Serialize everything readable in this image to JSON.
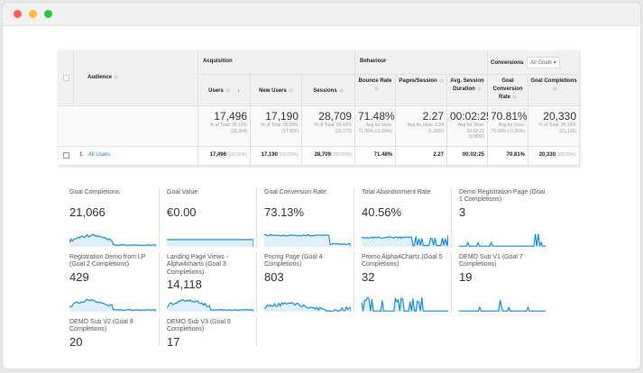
{
  "colors": {
    "accent": "#1a8fd4",
    "link": "#1a73c8"
  },
  "table": {
    "audience_label": "Audience",
    "groups": {
      "acquisition": "Acquisition",
      "behaviour": "Behaviour",
      "conversions": "Conversions"
    },
    "goal_select": "All Goals",
    "columns": [
      {
        "label": "Users",
        "total": "17,496",
        "sub": "% of Total: 96.11% (18,204)",
        "row": "17,496",
        "row_pct": "(100.00%)"
      },
      {
        "label": "New Users",
        "total": "17,190",
        "sub": "% of Total: 95.89% (17,926)",
        "row": "17,190",
        "row_pct": "(100.00%)"
      },
      {
        "label": "Sessions",
        "total": "28,709",
        "sub": "% of Total: 96.43% (29,772)",
        "row": "28,709",
        "row_pct": "(100.00%)"
      },
      {
        "label": "Bounce Rate",
        "total": "71.48%",
        "sub": "Avg for View: 71.90% (-0.59%)",
        "row": "71.48%",
        "row_pct": ""
      },
      {
        "label": "Pages/Session",
        "total": "2.27",
        "sub": "Avg for View: 2.24 (1.26%)",
        "row": "2.27",
        "row_pct": ""
      },
      {
        "label": "Avg. Session Duration",
        "total": "00:02:25",
        "sub": "Avg for View: 00:02:22 (2.06%)",
        "row": "00:02:25",
        "row_pct": ""
      },
      {
        "label": "Goal Conversion Rate",
        "total": "70.81%",
        "sub": "Avg for View: 70.99% (-0.25%)",
        "row": "70.81%",
        "row_pct": ""
      },
      {
        "label": "Goal Completions",
        "total": "20,330",
        "sub": "% of Total: 96.19% (21,136)",
        "row": "20,330",
        "row_pct": "(100.00%)"
      }
    ],
    "row_index": "1.",
    "row_label": "All Users"
  },
  "cards": [
    {
      "title": "Goal Completions",
      "value": "21,066"
    },
    {
      "title": "Goal Value",
      "value": "€0.00"
    },
    {
      "title": "Goal Conversion Rate",
      "value": "73.13%"
    },
    {
      "title": "Total Abandonment Rate",
      "value": "40.56%"
    },
    {
      "title": "Demo Registration Page (Goal 1 Completions)",
      "value": "3"
    },
    {
      "title": "Registration Demo from LP (Goal 2 Completions)",
      "value": "429"
    },
    {
      "title": "Landing Page Views - Alpha4charts (Goal 3 Completions)",
      "value": "14,118"
    },
    {
      "title": "Pricing Page (Goal 4 Completions)",
      "value": "803"
    },
    {
      "title": "Promo Alpha4Charts (Goal 5 Completions)",
      "value": "32"
    },
    {
      "title": "DEMO Sub V1 (Goal 7 Completions)",
      "value": "19"
    },
    {
      "title": "DEMO Sub V2 (Goal 8 Completions)",
      "value": "20"
    },
    {
      "title": "DEMO Sub V3 (Goal 9 Completions)",
      "value": "17"
    }
  ]
}
